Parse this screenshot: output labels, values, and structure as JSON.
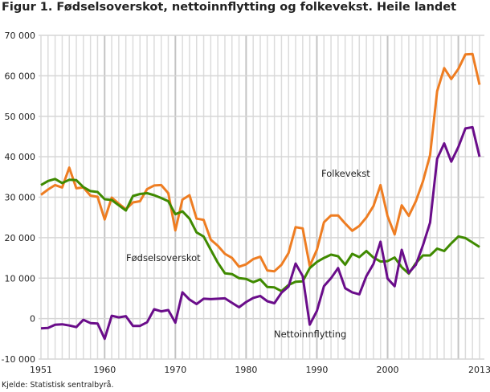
{
  "chart_data": {
    "type": "line",
    "title": "Figur 1. Fødselsoverskot, nettoinnflytting og folkevekst. Heile landet",
    "source": "Kjelde: Statistisk sentralbyrå.",
    "xlabel": "",
    "ylabel": "",
    "xlim": [
      1951,
      2013
    ],
    "ylim": [
      -10000,
      70000
    ],
    "x_tick_labels": [
      "1951",
      "1960",
      "1970",
      "1980",
      "1990",
      "2000",
      "2013"
    ],
    "y_tick_labels": [
      "-10 000",
      "0",
      "10 000",
      "20 000",
      "30 000",
      "40 000",
      "50 000",
      "60 000",
      "70 000"
    ],
    "grid": true,
    "x_start": 1951,
    "series": [
      {
        "name": "Folkevekst",
        "color": "#ee7d22",
        "values": [
          30600,
          31900,
          33000,
          32400,
          37300,
          32200,
          32400,
          30400,
          30100,
          24500,
          29900,
          28400,
          27000,
          28700,
          29000,
          32000,
          32900,
          33000,
          31000,
          21800,
          29400,
          30500,
          24700,
          24400,
          19500,
          18000,
          16000,
          15000,
          12800,
          13400,
          14700,
          15300,
          11900,
          11700,
          13300,
          16200,
          22600,
          22300,
          13000,
          17000,
          23800,
          25500,
          25500,
          23500,
          21700,
          22900,
          25000,
          27800,
          33000,
          25300,
          20800,
          28000,
          25400,
          29000,
          33900,
          40400,
          56200,
          61900,
          59200,
          61700,
          65300,
          65400,
          57800
        ]
      },
      {
        "name": "Fødselsoverskot",
        "color": "#3f8a00",
        "values": [
          33000,
          34000,
          34500,
          33500,
          34300,
          34200,
          32500,
          31500,
          31300,
          29500,
          29300,
          28000,
          26700,
          30300,
          30800,
          31000,
          30500,
          29800,
          29000,
          25800,
          26500,
          24700,
          21300,
          20300,
          17000,
          13800,
          11200,
          11000,
          10000,
          9800,
          9000,
          9700,
          7800,
          7700,
          6800,
          8300,
          9100,
          9200,
          12500,
          14000,
          15000,
          15800,
          15400,
          13300,
          16000,
          15200,
          16700,
          15100,
          14100,
          14200,
          15100,
          12700,
          11100,
          13700,
          15600,
          15600,
          17300,
          16700,
          18600,
          20300,
          19900,
          18800,
          17700
        ]
      },
      {
        "name": "Nettoinnflytting",
        "color": "#6a0d8a",
        "values": [
          -2400,
          -2300,
          -1500,
          -1400,
          -1700,
          -2100,
          -300,
          -1100,
          -1200,
          -5000,
          700,
          300,
          600,
          -1800,
          -1800,
          -900,
          2300,
          1800,
          2100,
          -1000,
          6500,
          4700,
          3600,
          4900,
          4800,
          4900,
          5000,
          3900,
          2800,
          4100,
          5100,
          5600,
          4300,
          3800,
          6400,
          7900,
          13600,
          10500,
          -1500,
          1900,
          8000,
          10000,
          12500,
          7500,
          6500,
          6000,
          10500,
          13500,
          19000,
          9900,
          8000,
          17000,
          11300,
          13300,
          18100,
          23700,
          39500,
          43300,
          38800,
          42400,
          47000,
          47300,
          40000
        ]
      }
    ]
  }
}
